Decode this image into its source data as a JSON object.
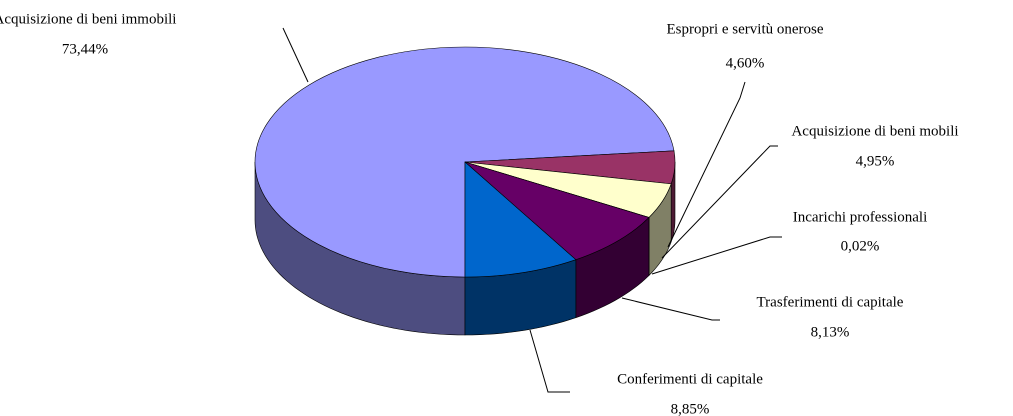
{
  "chart_data": {
    "type": "pie",
    "categories": [
      "Acquisizione di beni immobili",
      "Espropri e servitù onerose",
      "Acquisizione di beni mobili",
      "Incarichi professionali",
      "Trasferimenti di capitale",
      "Conferimenti di capitale"
    ],
    "values": [
      73.44,
      4.6,
      4.95,
      0.02,
      8.13,
      8.85
    ],
    "value_labels": [
      "73,44%",
      "4,60%",
      "4,95%",
      "0,02%",
      "8,13%",
      "8,85%"
    ],
    "colors": [
      "#9999ff",
      "#993366",
      "#ffffcc",
      "#ccffff",
      "#660066",
      "#0066cc"
    ]
  }
}
